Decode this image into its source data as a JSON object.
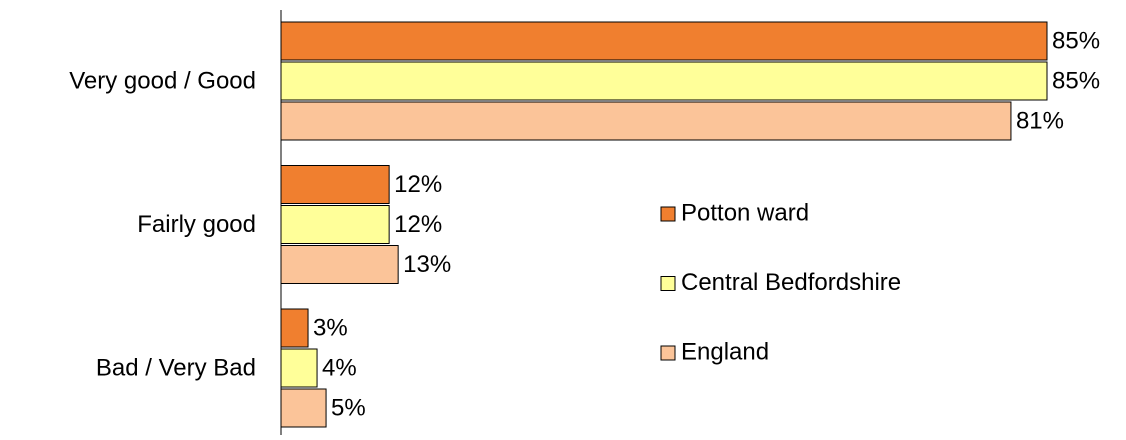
{
  "chart_data": {
    "type": "bar",
    "orientation": "horizontal",
    "categories": [
      "Very good / Good",
      "Fairly good",
      "Bad / Very Bad"
    ],
    "series": [
      {
        "name": "Potton ward",
        "color": "#f07f2f",
        "values": [
          85,
          12,
          3
        ],
        "value_labels": [
          "85%",
          "12%",
          "3%"
        ]
      },
      {
        "name": "Central Bedfordshire",
        "color": "#ffff99",
        "values": [
          85,
          12,
          4
        ],
        "value_labels": [
          "85%",
          "12%",
          "4%"
        ]
      },
      {
        "name": "England",
        "color": "#fbc499",
        "values": [
          81,
          13,
          5
        ],
        "value_labels": [
          "81%",
          "13%",
          "5%"
        ]
      }
    ],
    "xlim": [
      0,
      85
    ],
    "legend": "right"
  }
}
